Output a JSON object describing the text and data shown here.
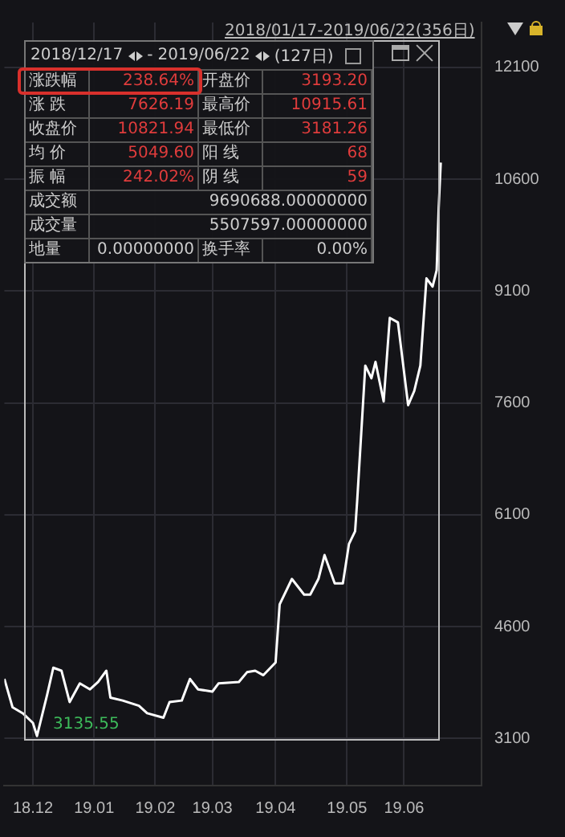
{
  "chart_data": {
    "type": "line",
    "subtitle": "2018/01/17-2019/06/22(356日)",
    "x": [
      "2018-11-19",
      "2018-11-23",
      "2018-11-28",
      "2018-12-03",
      "2018-12-05",
      "2018-12-10",
      "2018-12-13",
      "2018-12-17",
      "2018-12-21",
      "2018-12-26",
      "2018-12-31",
      "2019-01-04",
      "2019-01-08",
      "2019-01-10",
      "2019-01-16",
      "2019-01-24",
      "2019-01-28",
      "2019-02-05",
      "2019-02-08",
      "2019-02-14",
      "2019-02-18",
      "2019-02-22",
      "2019-03-01",
      "2019-03-04",
      "2019-03-14",
      "2019-03-18",
      "2019-03-22",
      "2019-03-26",
      "2019-04-01",
      "2019-04-03",
      "2019-04-09",
      "2019-04-15",
      "2019-04-18",
      "2019-04-22",
      "2019-04-25",
      "2019-04-30",
      "2019-05-04",
      "2019-05-07",
      "2019-05-10",
      "2019-05-11",
      "2019-05-15",
      "2019-05-18",
      "2019-05-20",
      "2019-05-24",
      "2019-05-27",
      "2019-05-31",
      "2019-06-05",
      "2019-06-08",
      "2019-06-11",
      "2019-06-14",
      "2019-06-17",
      "2019-06-19",
      "2019-06-20",
      "2019-06-21"
    ],
    "series": [
      {
        "color": "#ffffff",
        "values": [
          3900,
          3520,
          3440,
          3310,
          3135.55,
          3690,
          4050,
          4010,
          3590,
          3840,
          3760,
          3860,
          4010,
          3650,
          3610,
          3540,
          3440,
          3380,
          3590,
          3610,
          3900,
          3760,
          3730,
          3840,
          3860,
          3990,
          4010,
          3950,
          4120,
          4900,
          5240,
          5030,
          5030,
          5240,
          5560,
          5180,
          5180,
          5710,
          5880,
          6280,
          8100,
          7930,
          8150,
          7620,
          8740,
          8680,
          7570,
          7760,
          8100,
          9270,
          9160,
          9380,
          10220,
          10821.94
        ]
      }
    ],
    "xlim": [
      "2018-11-19",
      "2019-07-11"
    ],
    "xticks": [
      {
        "value": "2018-12-03",
        "label": "18.12"
      },
      {
        "value": "2019-01-02",
        "label": "19.01"
      },
      {
        "value": "2019-02-01",
        "label": "19.02"
      },
      {
        "value": "2019-03-01",
        "label": "19.03"
      },
      {
        "value": "2019-04-01",
        "label": "19.04"
      },
      {
        "value": "2019-05-06",
        "label": "19.05"
      },
      {
        "value": "2019-06-03",
        "label": "19.06"
      }
    ],
    "ylim": [
      2470,
      12700
    ],
    "yticks": [
      3100,
      4600,
      6100,
      7600,
      9100,
      10600,
      12100
    ],
    "grid": true,
    "legend": false,
    "marker": "none",
    "line_style": "solid",
    "annotations": [
      "2018/12/17",
      "-",
      "2019/06/22",
      "(127日)",
      "涨跌幅",
      "238.64%",
      "开盘价",
      "3193.20",
      "涨 跌",
      "7626.19",
      "最高价",
      "10915.61",
      "收盘价",
      "10821.94",
      "最低价",
      "3181.26",
      "均 价",
      "5049.60",
      "阳 线",
      "68",
      "振 幅",
      "242.02%",
      "阴 线",
      "59",
      "成交额",
      "9690688.00000000",
      "成交量",
      "5507597.00000000",
      "地量",
      "0.00000000",
      "换手率",
      "0.00%",
      {
        "text": "3135.55",
        "x": "2018-12-05",
        "y": 3135.55
      }
    ]
  }
}
